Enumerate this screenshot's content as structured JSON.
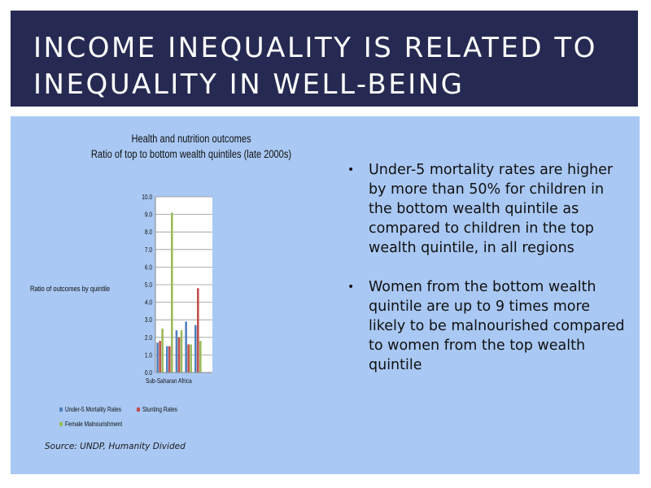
{
  "slide": {
    "title": "INCOME INEQUALITY IS RELATED TO INEQUALITY IN WELL-BEING",
    "source": "Source: UNDP, Humanity Divided",
    "bullets": [
      "Under-5 mortality rates are higher by more than 50% for children in the bottom wealth quintile as compared to children in the top wealth quintile, in all regions",
      "Women from the bottom wealth quintile are up to 9 times more likely to be malnourished compared to women from the top wealth quintile"
    ],
    "bullet_char": "•"
  },
  "chart_data": {
    "type": "bar",
    "title": "Health and nutrition outcomes",
    "subtitle": "Ratio of top to bottom wealth quintiles (late 2000s)",
    "ylabel": "Ratio of outcomes by quintile",
    "xlabel": "",
    "ylim": [
      0,
      10
    ],
    "yticks": [
      "0.0",
      "1.0",
      "2.0",
      "3.0",
      "4.0",
      "5.0",
      "6.0",
      "7.0",
      "8.0",
      "9.0",
      "10.0"
    ],
    "categories": [
      "Sub-Saharan Africa",
      "",
      "",
      "",
      "",
      ""
    ],
    "grid": true,
    "legend_position": "bottom",
    "series": [
      {
        "name": "Under-5 Mortality Rates",
        "color": "#4f81bd",
        "values": [
          1.7,
          1.5,
          2.4,
          2.9,
          2.7,
          0
        ]
      },
      {
        "name": "Stunting Rates",
        "color": "#c0504d",
        "values": [
          1.8,
          1.5,
          2.0,
          1.6,
          4.8,
          0
        ]
      },
      {
        "name": "Female Malnourishment",
        "color": "#9bbb59",
        "values": [
          2.5,
          9.1,
          2.4,
          1.6,
          1.8,
          0
        ]
      }
    ]
  }
}
